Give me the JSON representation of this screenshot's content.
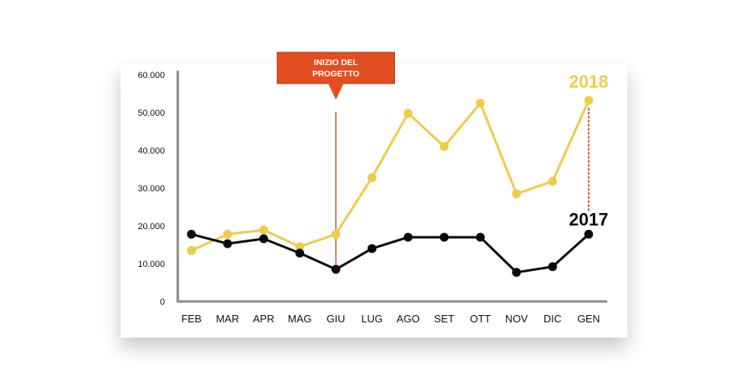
{
  "chart_data": {
    "type": "line",
    "categories": [
      "FEB",
      "MAR",
      "APR",
      "MAG",
      "GIU",
      "LUG",
      "AGO",
      "SET",
      "OTT",
      "NOV",
      "DIC",
      "GEN"
    ],
    "yticks": [
      "0",
      "10.000",
      "20.000",
      "30.000",
      "40.000",
      "50.000",
      "60.000"
    ],
    "ylim": [
      0,
      60000
    ],
    "grid": false,
    "series": [
      {
        "name": "2018",
        "color": "#EFCB4A",
        "values": [
          13500,
          17800,
          18900,
          14500,
          17800,
          32800,
          49800,
          41000,
          52500,
          28500,
          31800,
          53200
        ]
      },
      {
        "name": "2017",
        "color": "#0B0B0B",
        "values": [
          17800,
          15300,
          16600,
          12800,
          8500,
          14000,
          17000,
          17000,
          17000,
          7700,
          9200,
          17800
        ]
      }
    ],
    "annotation": {
      "line1": "INIZIO DEL",
      "line2": "PROGETTO",
      "category": "GIU",
      "box_color": "#E24E20",
      "line_color": "#E24E20"
    },
    "gap_marker": {
      "category": "GEN",
      "color": "#E24E20",
      "style": "dotted"
    }
  }
}
